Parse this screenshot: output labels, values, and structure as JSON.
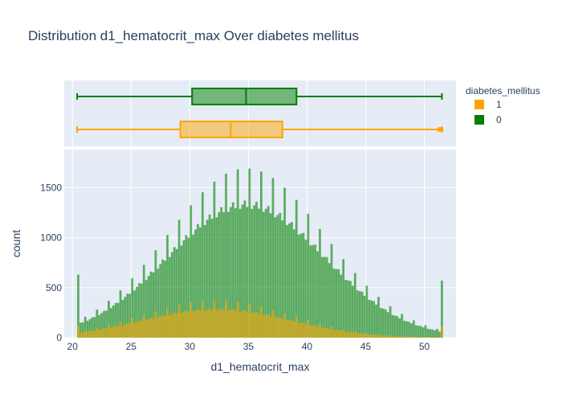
{
  "chart_data": {
    "type": "histogram",
    "title": "Distribution d1_hematocrit_max Over diabetes mellitus",
    "xlabel": "d1_hematocrit_max",
    "ylabel": "count",
    "xlim": [
      19.3,
      52.7
    ],
    "ylim": [
      0,
      1880
    ],
    "x_ticks": [
      20,
      25,
      30,
      35,
      40,
      45,
      50
    ],
    "y_ticks": [
      0,
      500,
      1000,
      1500
    ],
    "grid": true,
    "barmode": "overlay",
    "legend": {
      "title": "diabetes_mellitus",
      "position": "top-right",
      "entries": [
        {
          "label": "1",
          "color": "#FFA500"
        },
        {
          "label": "0",
          "color": "#008000"
        }
      ]
    },
    "bins": {
      "start": 20.4,
      "end": 51.6,
      "width": 0.2
    },
    "series": [
      {
        "name": "0",
        "color": "#008000",
        "opacity": 0.6,
        "shape": {
          "center": 34.8,
          "sd": 6.7,
          "peak": 1330
        },
        "spikes_every": 1.0,
        "spike_add": 300,
        "edge_values": {
          "first": 630,
          "last": 570
        },
        "box": {
          "min": 20.4,
          "q1": 30.2,
          "median": 34.8,
          "q3": 39.1,
          "max": 51.5
        }
      },
      {
        "name": "1",
        "color": "#FFA500",
        "opacity": 0.6,
        "shape": {
          "center": 32.3,
          "sd": 6.3,
          "peak": 285
        },
        "spikes_every": 1.0,
        "spike_add": 75,
        "edge_values": {
          "first": 120,
          "last": 120
        },
        "box": {
          "min": 20.4,
          "q1": 29.2,
          "median": 33.5,
          "q3": 37.9,
          "max": 51.5
        }
      }
    ]
  }
}
